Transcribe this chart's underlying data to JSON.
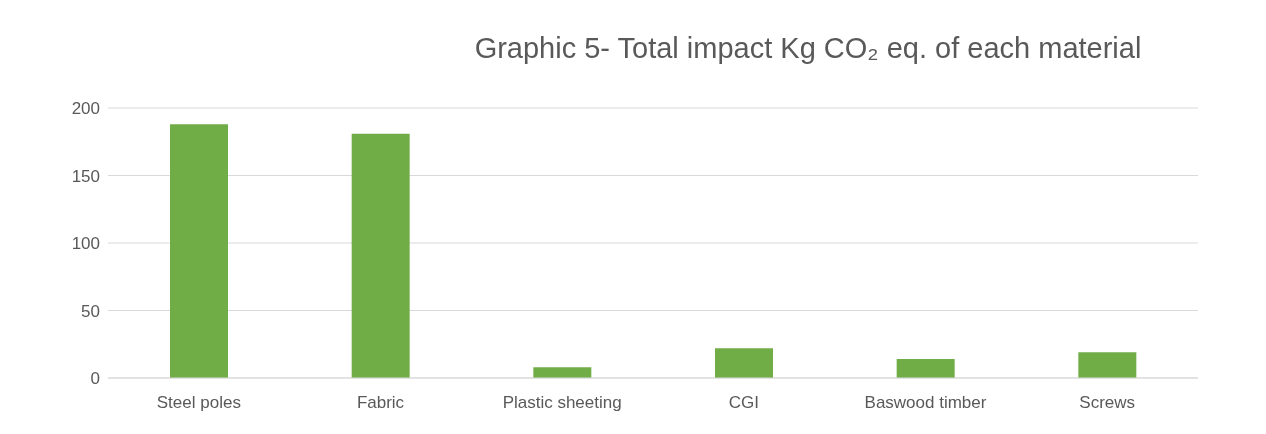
{
  "chart_data": {
    "type": "bar",
    "title": "Graphic 5- Total impact Kg CO₂ eq. of each material",
    "categories": [
      "Steel poles",
      "Fabric",
      "Plastic sheeting",
      "CGI",
      "Baswood timber",
      "Screws"
    ],
    "values": [
      188,
      181,
      8,
      22,
      14,
      19
    ],
    "color": "#70ad47",
    "ylim": [
      0,
      200
    ],
    "yticks": [
      0,
      50,
      100,
      150,
      200
    ],
    "grid": "y"
  }
}
